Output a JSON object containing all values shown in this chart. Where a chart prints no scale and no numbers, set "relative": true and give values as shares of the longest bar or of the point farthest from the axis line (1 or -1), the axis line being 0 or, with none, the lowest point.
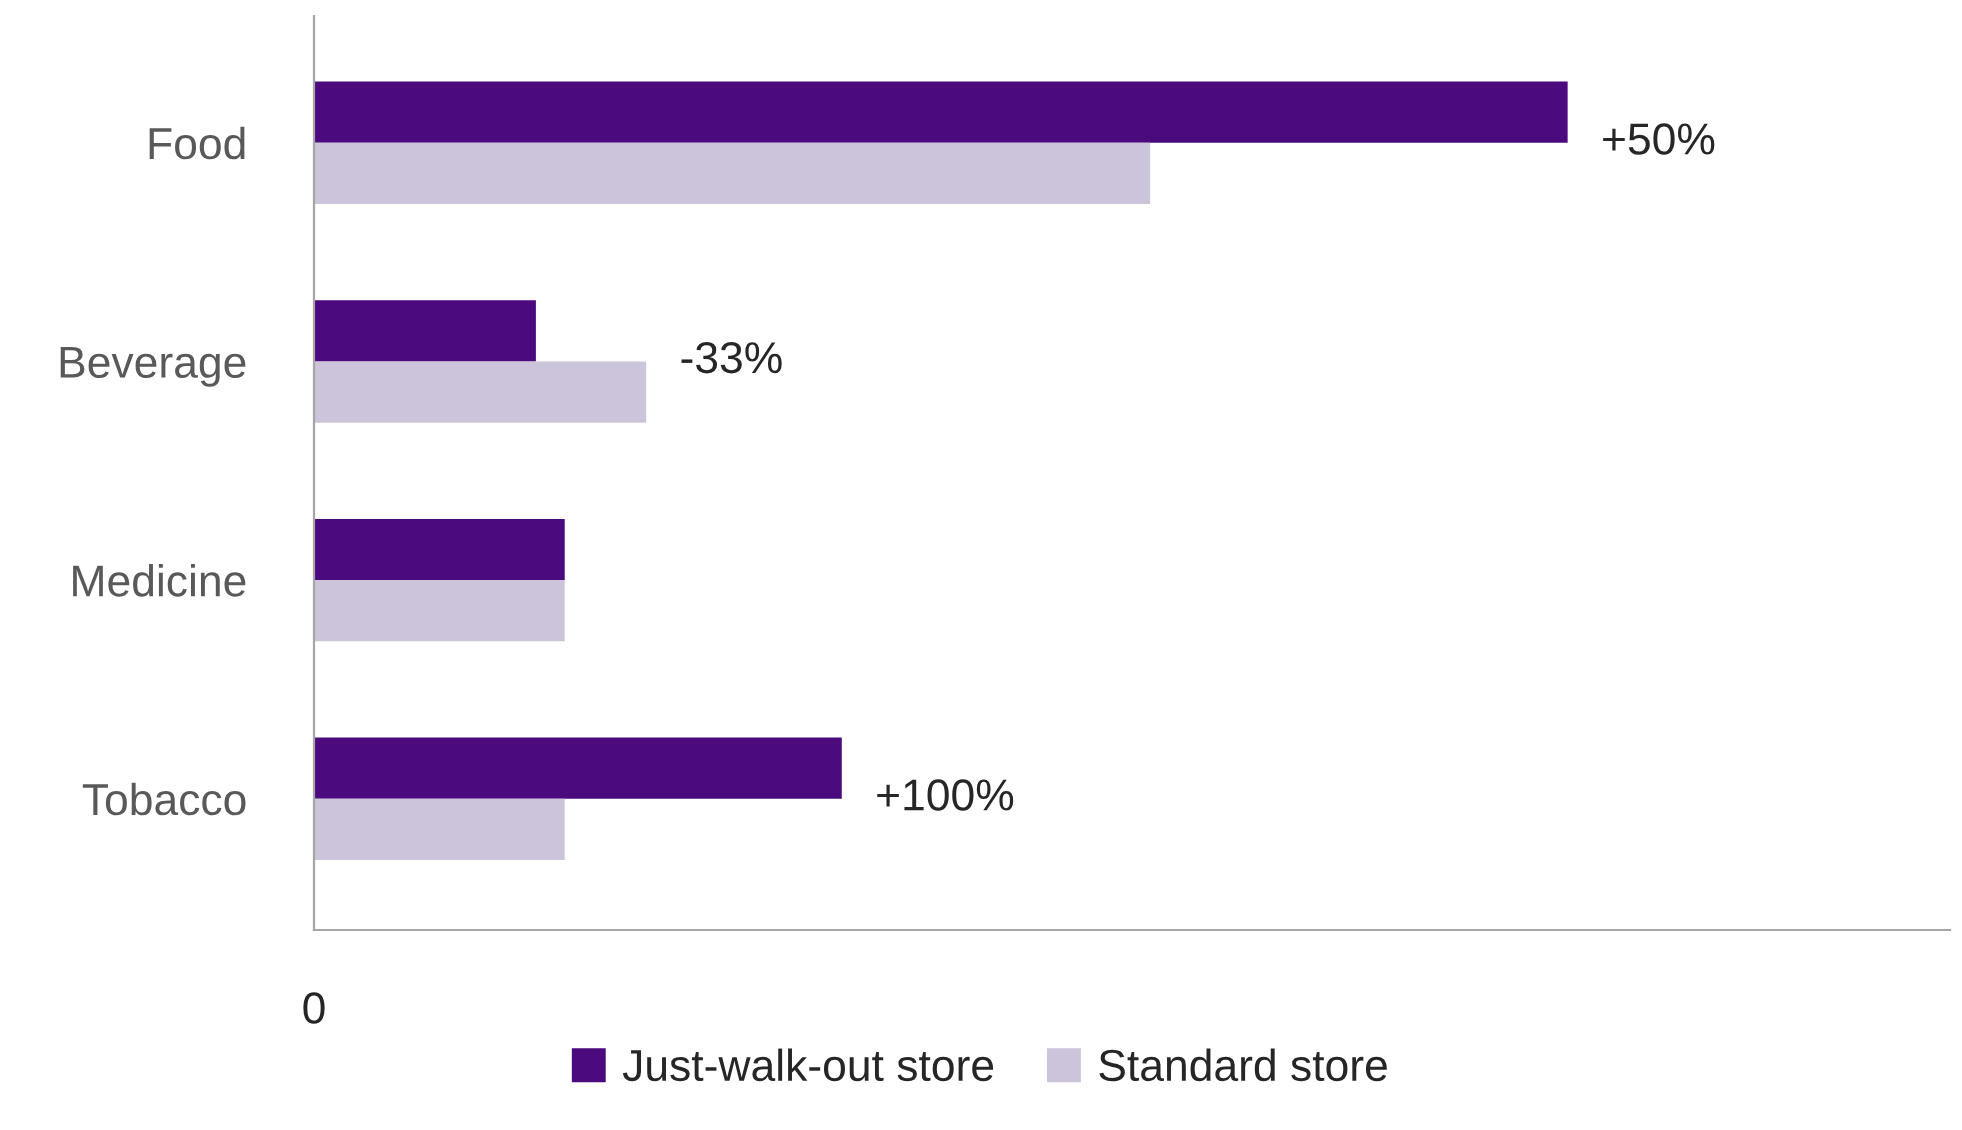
{
  "chart_data": {
    "type": "bar",
    "orientation": "horizontal",
    "relative": true,
    "categories": [
      "Food",
      "Beverage",
      "Medicine",
      "Tobacco"
    ],
    "series": [
      {
        "name": "Just-walk-out store",
        "color": "#4b0a7d",
        "values": [
          1,
          0.177,
          0.2,
          0.421
        ]
      },
      {
        "name": "Standard store",
        "color": "#ccc4da",
        "values": [
          0.667,
          0.265,
          0.2,
          0.2
        ]
      }
    ],
    "annotations": [
      {
        "text": "+50%",
        "x": 1,
        "y": "Food"
      },
      {
        "text": "-33%",
        "x": 0.265,
        "y": "Beverage"
      },
      {
        "text": "+100%",
        "x": 0.421,
        "y": "Tobacco"
      },
      "0"
    ],
    "legend": "bottom",
    "grid": false
  }
}
